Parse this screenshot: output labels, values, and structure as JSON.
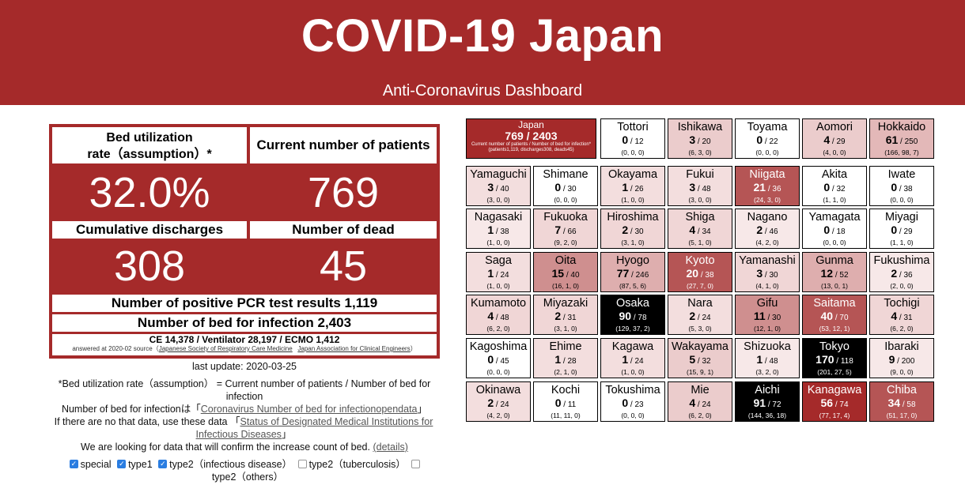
{
  "header": {
    "title": "COVID-19 Japan",
    "subtitle": "Anti-Coronavirus Dashboard"
  },
  "stats": {
    "bed_rate_label_1": "Bed utilization",
    "bed_rate_label_2": "rate（assumption）*",
    "bed_rate_value": "32.0%",
    "current_patients_label": "Current number of patients",
    "current_patients_value": "769",
    "discharges_label": "Cumulative discharges",
    "discharges_value": "308",
    "dead_label": "Number of dead",
    "dead_value": "45",
    "pcr_label": "Number of positive PCR test results 1,119",
    "beds_label": "Number of bed for infection 2,403",
    "equipment_label": "CE 14,378 / Ventilator 28,197 / ECMO 1,412",
    "answered_prefix": "answered at 2020-02 source（",
    "source_1": "Japanese Society of Respiratory Care Medicine",
    "source_2": "Japan Association for Clinical Engineers",
    "answered_suffix": "）"
  },
  "notes": {
    "last_update": "last update: 2020-03-25",
    "footnote": "*Bed utilization rate（assumption） = Current number of patients / Number of bed for infection",
    "beds_source_prefix": "Number of bed for infectionは「",
    "beds_source_link": "Coronavirus Number of bed for infectionopendata",
    "beds_source_suffix": "」",
    "alt_data_prefix": "If there are no that data, use these data 「",
    "alt_data_link": "Status of Designated Medical Institutions for Infectious Diseases",
    "alt_data_suffix": "」",
    "looking_for": "We are looking for data that will confirm the increase count of bed.",
    "details_link": "(details)",
    "checkboxes": [
      {
        "label": "special",
        "checked": true
      },
      {
        "label": "type1",
        "checked": true
      },
      {
        "label": "type2（infectious disease）",
        "checked": true
      },
      {
        "label": "type2（tuberculosis）",
        "checked": false
      },
      {
        "label": "type2（others）",
        "checked": false
      }
    ]
  },
  "map": {
    "japan": {
      "name": "Japan",
      "value": "769 / 2403",
      "caption": "Current number of patients / Number of bed for infection*",
      "detail": "(patients1,119, discharges308, deads45)"
    },
    "prefectures": [
      {
        "name": "Tottori",
        "current": "0",
        "beds": " / 12",
        "detail": "(0, 0, 0)",
        "bg": "#ffffff",
        "fg": "#000000"
      },
      {
        "name": "Ishikawa",
        "current": "3",
        "beds": " / 20",
        "detail": "(6, 3, 0)",
        "bg": "#ebcccc",
        "fg": "#000000"
      },
      {
        "name": "Toyama",
        "current": "0",
        "beds": " / 22",
        "detail": "(0, 0, 0)",
        "bg": "#ffffff",
        "fg": "#000000"
      },
      {
        "name": "Aomori",
        "current": "4",
        "beds": " / 29",
        "detail": "(4, 0, 0)",
        "bg": "#ebcccc",
        "fg": "#000000"
      },
      {
        "name": "Hokkaido",
        "current": "61",
        "beds": " / 250",
        "detail": "(166, 98, 7)",
        "bg": "#e3b8b8",
        "fg": "#000000"
      },
      {
        "name": "Yamaguchi",
        "current": "3",
        "beds": " / 40",
        "detail": "(3, 0, 0)",
        "bg": "#f3dede",
        "fg": "#000000"
      },
      {
        "name": "Shimane",
        "current": "0",
        "beds": " / 30",
        "detail": "(0, 0, 0)",
        "bg": "#ffffff",
        "fg": "#000000"
      },
      {
        "name": "Okayama",
        "current": "1",
        "beds": " / 26",
        "detail": "(1, 0, 0)",
        "bg": "#f3dede",
        "fg": "#000000"
      },
      {
        "name": "Fukui",
        "current": "3",
        "beds": " / 48",
        "detail": "(3, 0, 0)",
        "bg": "#f3dede",
        "fg": "#000000"
      },
      {
        "name": "Niigata",
        "current": "21",
        "beds": " / 36",
        "detail": "(24, 3, 0)",
        "bg": "#b55555",
        "fg": "#ffffff"
      },
      {
        "name": "Akita",
        "current": "0",
        "beds": " / 32",
        "detail": "(1, 1, 0)",
        "bg": "#ffffff",
        "fg": "#000000"
      },
      {
        "name": "Iwate",
        "current": "0",
        "beds": " / 38",
        "detail": "(0, 0, 0)",
        "bg": "#ffffff",
        "fg": "#000000"
      },
      {
        "name": "Nagasaki",
        "current": "1",
        "beds": " / 38",
        "detail": "(1, 0, 0)",
        "bg": "#f7e8e8",
        "fg": "#000000"
      },
      {
        "name": "Fukuoka",
        "current": "7",
        "beds": " / 66",
        "detail": "(9, 2, 0)",
        "bg": "#f0d6d6",
        "fg": "#000000"
      },
      {
        "name": "Hiroshima",
        "current": "2",
        "beds": " / 30",
        "detail": "(3, 1, 0)",
        "bg": "#f0d6d6",
        "fg": "#000000"
      },
      {
        "name": "Shiga",
        "current": "4",
        "beds": " / 34",
        "detail": "(5, 1, 0)",
        "bg": "#f0d6d6",
        "fg": "#000000"
      },
      {
        "name": "Nagano",
        "current": "2",
        "beds": " / 46",
        "detail": "(4, 2, 0)",
        "bg": "#f7e8e8",
        "fg": "#000000"
      },
      {
        "name": "Yamagata",
        "current": "0",
        "beds": " / 18",
        "detail": "(0, 0, 0)",
        "bg": "#ffffff",
        "fg": "#000000"
      },
      {
        "name": "Miyagi",
        "current": "0",
        "beds": " / 29",
        "detail": "(1, 1, 0)",
        "bg": "#ffffff",
        "fg": "#000000"
      },
      {
        "name": "Saga",
        "current": "1",
        "beds": " / 24",
        "detail": "(1, 0, 0)",
        "bg": "#f3dede",
        "fg": "#000000"
      },
      {
        "name": "Oita",
        "current": "15",
        "beds": " / 40",
        "detail": "(16, 1, 0)",
        "bg": "#cf8f8f",
        "fg": "#000000"
      },
      {
        "name": "Hyogo",
        "current": "77",
        "beds": " / 246",
        "detail": "(87, 5, 6)",
        "bg": "#deaeae",
        "fg": "#000000"
      },
      {
        "name": "Kyoto",
        "current": "20",
        "beds": " / 38",
        "detail": "(27, 7, 0)",
        "bg": "#b55555",
        "fg": "#ffffff"
      },
      {
        "name": "Yamanashi",
        "current": "3",
        "beds": " / 30",
        "detail": "(4, 1, 0)",
        "bg": "#f0d6d6",
        "fg": "#000000"
      },
      {
        "name": "Gunma",
        "current": "12",
        "beds": " / 52",
        "detail": "(13, 0, 1)",
        "bg": "#deaeae",
        "fg": "#000000"
      },
      {
        "name": "Fukushima",
        "current": "2",
        "beds": " / 36",
        "detail": "(2, 0, 0)",
        "bg": "#f7e8e8",
        "fg": "#000000"
      },
      {
        "name": "Kumamoto",
        "current": "4",
        "beds": " / 48",
        "detail": "(6, 2, 0)",
        "bg": "#f0d6d6",
        "fg": "#000000"
      },
      {
        "name": "Miyazaki",
        "current": "2",
        "beds": " / 31",
        "detail": "(3, 1, 0)",
        "bg": "#f0d6d6",
        "fg": "#000000"
      },
      {
        "name": "Osaka",
        "current": "90",
        "beds": " / 78",
        "detail": "(129, 37, 2)",
        "bg": "#000000",
        "fg": "#ffffff"
      },
      {
        "name": "Nara",
        "current": "2",
        "beds": " / 24",
        "detail": "(5, 3, 0)",
        "bg": "#f3dede",
        "fg": "#000000"
      },
      {
        "name": "Gifu",
        "current": "11",
        "beds": " / 30",
        "detail": "(12, 1, 0)",
        "bg": "#cf8f8f",
        "fg": "#000000"
      },
      {
        "name": "Saitama",
        "current": "40",
        "beds": " / 70",
        "detail": "(53, 12, 1)",
        "bg": "#b55555",
        "fg": "#ffffff"
      },
      {
        "name": "Tochigi",
        "current": "4",
        "beds": " / 31",
        "detail": "(6, 2, 0)",
        "bg": "#f0d6d6",
        "fg": "#000000"
      },
      {
        "name": "Kagoshima",
        "current": "0",
        "beds": " / 45",
        "detail": "(0, 0, 0)",
        "bg": "#ffffff",
        "fg": "#000000"
      },
      {
        "name": "Ehime",
        "current": "1",
        "beds": " / 28",
        "detail": "(2, 1, 0)",
        "bg": "#f3dede",
        "fg": "#000000"
      },
      {
        "name": "Kagawa",
        "current": "1",
        "beds": " / 24",
        "detail": "(1, 0, 0)",
        "bg": "#f3dede",
        "fg": "#000000"
      },
      {
        "name": "Wakayama",
        "current": "5",
        "beds": " / 32",
        "detail": "(15, 9, 1)",
        "bg": "#ebcccc",
        "fg": "#000000"
      },
      {
        "name": "Shizuoka",
        "current": "1",
        "beds": " / 48",
        "detail": "(3, 2, 0)",
        "bg": "#f7e8e8",
        "fg": "#000000"
      },
      {
        "name": "Tokyo",
        "current": "170",
        "beds": " / 118",
        "detail": "(201, 27, 5)",
        "bg": "#000000",
        "fg": "#ffffff"
      },
      {
        "name": "Ibaraki",
        "current": "9",
        "beds": " / 200",
        "detail": "(9, 0, 0)",
        "bg": "#f7e8e8",
        "fg": "#000000"
      },
      {
        "name": "Okinawa",
        "current": "2",
        "beds": " / 24",
        "detail": "(4, 2, 0)",
        "bg": "#f3dede",
        "fg": "#000000"
      },
      {
        "name": "Kochi",
        "current": "0",
        "beds": " / 11",
        "detail": "(11, 11, 0)",
        "bg": "#ffffff",
        "fg": "#000000"
      },
      {
        "name": "Tokushima",
        "current": "0",
        "beds": " / 23",
        "detail": "(0, 0, 0)",
        "bg": "#ffffff",
        "fg": "#000000"
      },
      {
        "name": "Mie",
        "current": "4",
        "beds": " / 24",
        "detail": "(6, 2, 0)",
        "bg": "#ebcccc",
        "fg": "#000000"
      },
      {
        "name": "Aichi",
        "current": "91",
        "beds": " / 72",
        "detail": "(144, 36, 18)",
        "bg": "#000000",
        "fg": "#ffffff"
      },
      {
        "name": "Kanagawa",
        "current": "56",
        "beds": " / 74",
        "detail": "(77, 17, 4)",
        "bg": "#a52a2a",
        "fg": "#ffffff"
      },
      {
        "name": "Chiba",
        "current": "34",
        "beds": " / 58",
        "detail": "(51, 17, 0)",
        "bg": "#b55555",
        "fg": "#ffffff"
      }
    ]
  },
  "colors": {
    "brand": "#a52a2a",
    "checkbox_on": "#2a7de1"
  }
}
